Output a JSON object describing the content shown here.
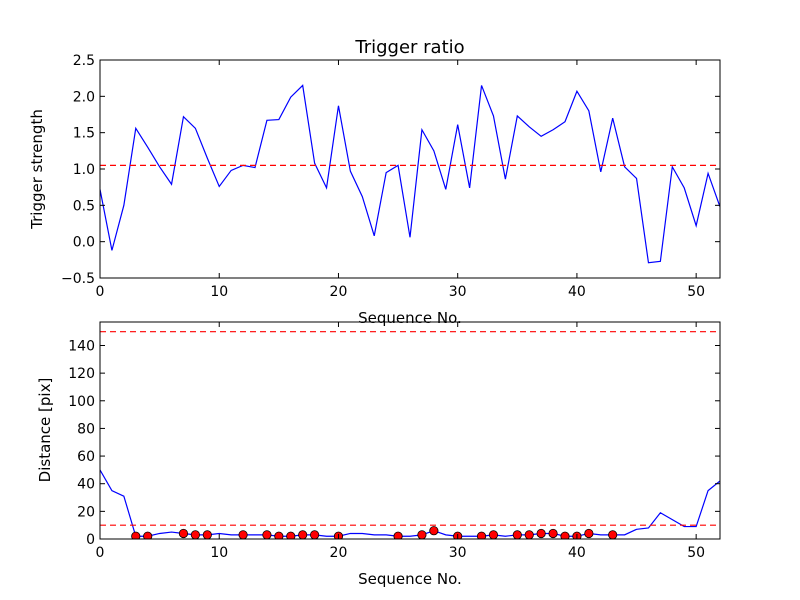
{
  "chart_data": [
    {
      "type": "line",
      "title": "Trigger ratio",
      "xlabel": "Sequence No.",
      "ylabel": "Trigger strength",
      "xlim": [
        0,
        52
      ],
      "ylim": [
        -0.5,
        2.5
      ],
      "xticks": [
        0,
        10,
        20,
        30,
        40,
        50
      ],
      "yticks": [
        -0.5,
        0.0,
        0.5,
        1.0,
        1.5,
        2.0,
        2.5
      ],
      "xtick_labels": [
        "0",
        "10",
        "20",
        "30",
        "40",
        "50"
      ],
      "ytick_labels": [
        "−0.5",
        "0.0",
        "0.5",
        "1.0",
        "1.5",
        "2.0",
        "2.5"
      ],
      "grid": false,
      "threshold": 1.05,
      "colors": {
        "line": "#0000ff",
        "threshold": "#ff0000"
      },
      "x": [
        0,
        1,
        2,
        3,
        4,
        5,
        6,
        7,
        8,
        9,
        10,
        11,
        12,
        13,
        14,
        15,
        16,
        17,
        18,
        19,
        20,
        21,
        22,
        23,
        24,
        25,
        26,
        27,
        28,
        29,
        30,
        31,
        32,
        33,
        34,
        35,
        36,
        37,
        38,
        39,
        40,
        41,
        42,
        43,
        44,
        45,
        46,
        47,
        48,
        49,
        50,
        51,
        52
      ],
      "y": [
        0.72,
        -0.12,
        0.5,
        1.56,
        1.3,
        1.03,
        0.79,
        1.72,
        1.56,
        1.15,
        0.76,
        0.98,
        1.05,
        1.02,
        1.67,
        1.68,
        1.99,
        2.15,
        1.08,
        0.74,
        1.87,
        0.97,
        0.62,
        0.08,
        0.95,
        1.05,
        0.06,
        1.54,
        1.25,
        0.72,
        1.61,
        0.74,
        2.15,
        1.73,
        0.86,
        1.73,
        1.58,
        1.45,
        1.54,
        1.65,
        2.07,
        1.8,
        0.96,
        1.7,
        1.03,
        0.87,
        -0.29,
        -0.27,
        1.03,
        0.74,
        0.22,
        0.94,
        0.48
      ]
    },
    {
      "type": "line",
      "title": "",
      "xlabel": "Sequence No.",
      "ylabel": "Distance [pix]",
      "xlim": [
        0,
        52
      ],
      "ylim": [
        0,
        157
      ],
      "xticks": [
        0,
        10,
        20,
        30,
        40,
        50
      ],
      "yticks": [
        0,
        20,
        40,
        60,
        80,
        100,
        120,
        140
      ],
      "xtick_labels": [
        "0",
        "10",
        "20",
        "30",
        "40",
        "50"
      ],
      "ytick_labels": [
        "0",
        "20",
        "40",
        "60",
        "80",
        "100",
        "120",
        "140"
      ],
      "grid": false,
      "thresholds": [
        150,
        10
      ],
      "colors": {
        "line": "#0000ff",
        "threshold": "#ff0000",
        "marker": "#ff0000"
      },
      "x": [
        0,
        1,
        2,
        3,
        4,
        5,
        6,
        7,
        8,
        9,
        10,
        11,
        12,
        13,
        14,
        15,
        16,
        17,
        18,
        19,
        20,
        21,
        22,
        23,
        24,
        25,
        26,
        27,
        28,
        29,
        30,
        31,
        32,
        33,
        34,
        35,
        36,
        37,
        38,
        39,
        40,
        41,
        42,
        43,
        44,
        45,
        46,
        47,
        48,
        49,
        50,
        51,
        52
      ],
      "y": [
        50,
        35,
        31,
        2,
        2,
        4,
        5,
        4,
        3,
        3,
        4,
        3,
        3,
        3,
        3,
        2,
        2,
        3,
        3,
        2,
        2,
        4,
        4,
        3,
        3,
        2,
        2,
        3,
        6,
        3,
        2,
        2,
        2,
        3,
        2,
        3,
        3,
        4,
        4,
        2,
        2,
        4,
        3,
        3,
        3,
        7,
        8,
        19,
        14,
        9,
        9,
        35,
        42
      ],
      "markers": {
        "x": [
          3,
          4,
          7,
          8,
          9,
          12,
          14,
          15,
          16,
          17,
          18,
          20,
          25,
          27,
          28,
          30,
          32,
          33,
          35,
          36,
          37,
          38,
          39,
          40,
          41,
          43
        ],
        "y": [
          2,
          2,
          4,
          3,
          3,
          3,
          3,
          2,
          2,
          3,
          3,
          2,
          2,
          3,
          6,
          2,
          2,
          3,
          3,
          3,
          4,
          4,
          2,
          2,
          4,
          3
        ]
      }
    }
  ]
}
